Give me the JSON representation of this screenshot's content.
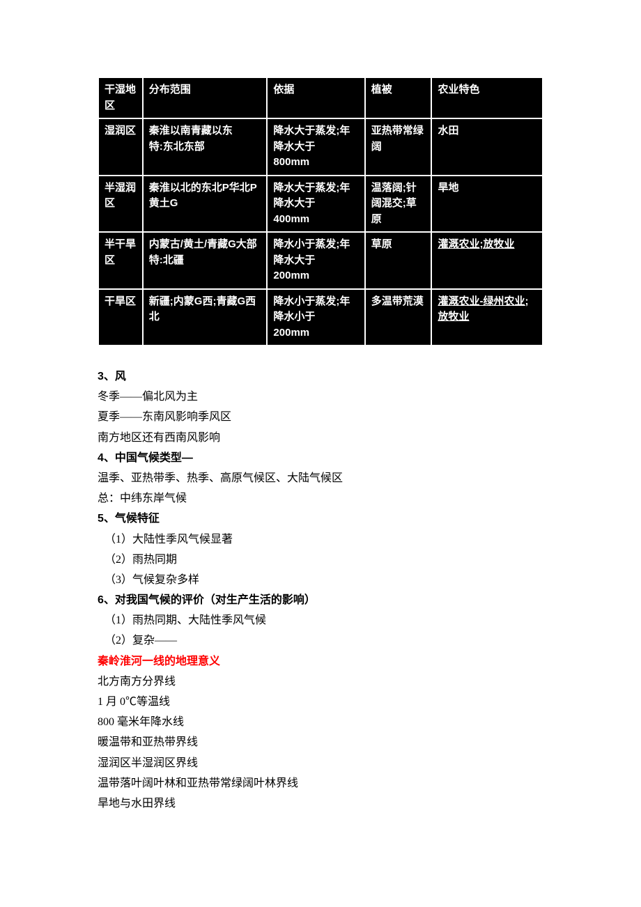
{
  "table": {
    "columns": [
      "干湿地区",
      "分布范围",
      "依据",
      "植被",
      "农业特色"
    ],
    "col_widths": [
      "10%",
      "28%",
      "22%",
      "15%",
      "25%"
    ],
    "rows": [
      {
        "c0": "湿润区",
        "c1": "秦淮以南青藏以东\n特:东北东部",
        "c2": "降水大于蒸发;年降水大于\n800mm",
        "c3": "亚热带常绿阔",
        "c4": "水田"
      },
      {
        "c0": "半湿润区",
        "c1": "秦淮以北的东北P华北P黄土G",
        "c2": "降水大于蒸发;年降水大于\n400mm",
        "c3": "温落阔;针阔混交;草原",
        "c4": "旱地"
      },
      {
        "c0": "半干旱区",
        "c1": "内蒙古/黄土/青藏G大部\n特:北疆",
        "c2": "降水小于蒸发;年降水大于\n200mm",
        "c3": "草原",
        "c4_a": "灌溉农业;放牧",
        "c4_b": "业"
      },
      {
        "c0": "干旱区",
        "c1": "新疆;内蒙G西;青藏G西北",
        "c2": "降水小于蒸发;年降水小于\n200mm",
        "c3": "多温带荒漠",
        "c4_a": "灌溉农业-绿州",
        "c4_b": "农业;放牧业"
      }
    ]
  },
  "sections": {
    "s3_title": "3、风",
    "s3_l1": "冬季——偏北风为主",
    "s3_l2": "夏季——东南风影响季风区",
    "s3_l3": "南方地区还有西南风影响",
    "s4_title": "4、中国气候类型—",
    "s4_l1": "温季、亚热带季、热季、高原气候区、大陆气候区",
    "s4_l2": "总：中纬东岸气候",
    "s5_title": "5、气候特征",
    "s5_l1": "（1）大陆性季风气候显著",
    "s5_l2": "（2）雨热同期",
    "s5_l3": "（3）气候复杂多样",
    "s6_title": "6、对我国气候的评价（对生产生活的影响）",
    "s6_l1": "（1）雨热同期、大陆性季风气候",
    "s6_l2": "（2）复杂——",
    "red_title": "秦岭淮河一线的地理意义",
    "r1": "北方南方分界线",
    "r2": "1 月 0℃等温线",
    "r3": "800 毫米年降水线",
    "r4": "暖温带和亚热带界线",
    "r5": "湿润区半湿润区界线",
    "r6": "温带落叶阔叶林和亚热带常绿阔叶林界线",
    "r7": "旱地与水田界线"
  }
}
